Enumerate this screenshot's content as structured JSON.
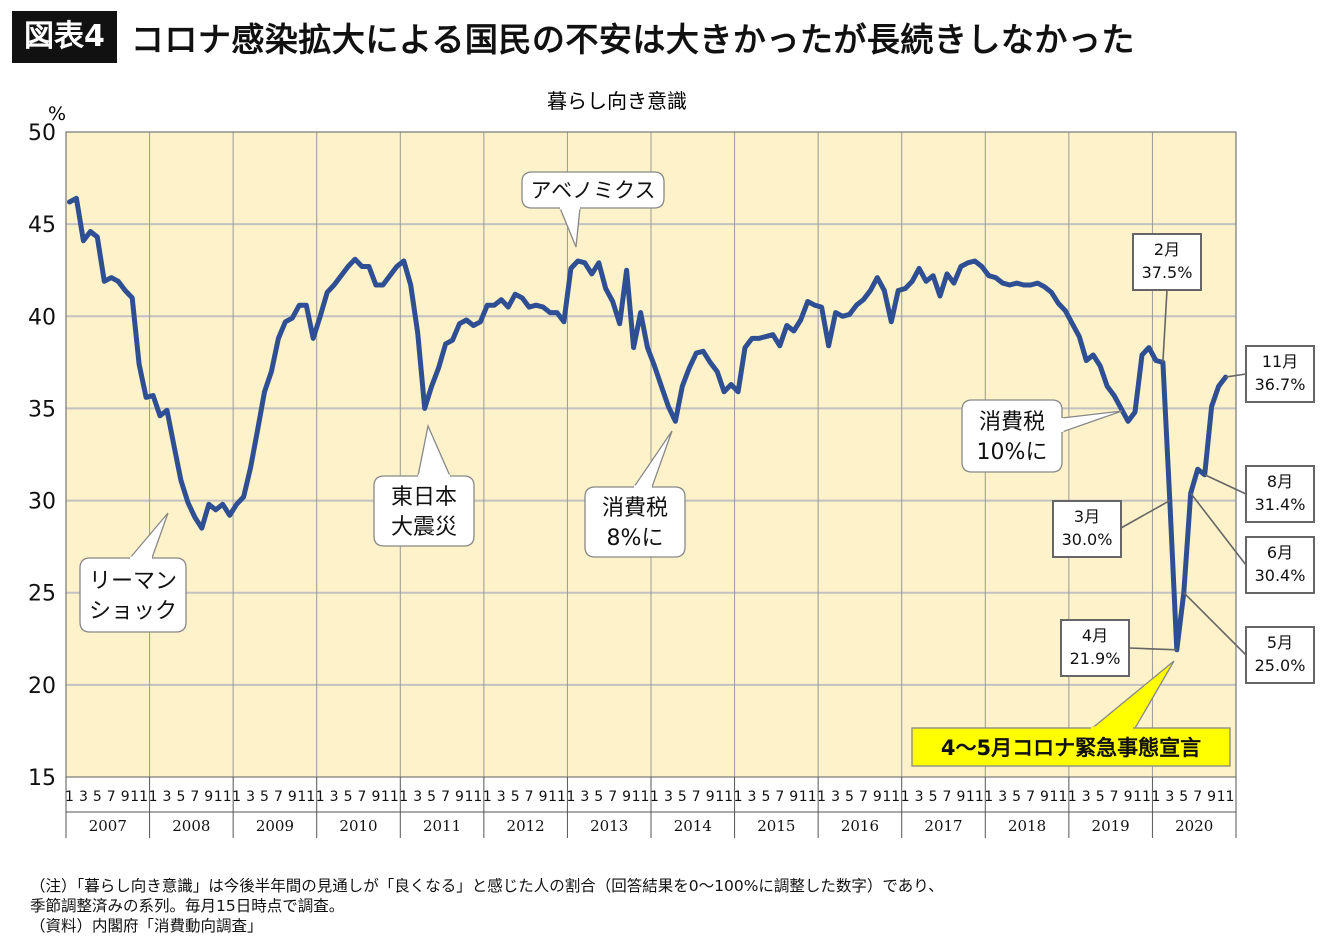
{
  "header": {
    "badge": "図表4",
    "headline": "コロナ感染拡大による国民の不安は大きかったが長続きしなかった"
  },
  "chart_data": {
    "type": "line",
    "title": "暮らし向き意識",
    "ylabel": "%",
    "ylim": [
      15,
      50
    ],
    "yticks": [
      15,
      20,
      25,
      30,
      35,
      40,
      45,
      50
    ],
    "month_labels": [
      "1",
      "3",
      "5",
      "7",
      "9",
      "11"
    ],
    "years": [
      "2007",
      "2008",
      "2009",
      "2010",
      "2011",
      "2012",
      "2013",
      "2014",
      "2015",
      "2016",
      "2017",
      "2018",
      "2019",
      "2020"
    ],
    "series": [
      {
        "values": [
          46.2,
          46.4,
          44.1,
          44.6,
          44.3,
          41.9,
          42.1,
          41.9,
          41.4,
          41.0,
          37.4,
          35.6,
          35.7,
          34.6,
          34.9,
          33.0,
          31.1,
          29.9,
          29.1,
          28.5,
          29.8,
          29.5,
          29.8,
          29.2,
          29.8,
          30.2,
          31.8,
          33.8,
          35.9,
          37.0,
          38.8,
          39.7,
          39.9,
          40.6,
          40.6,
          38.8,
          40.0,
          41.3,
          41.7,
          42.2,
          42.7,
          43.1,
          42.7,
          42.7,
          41.7,
          41.7,
          42.2,
          42.7,
          43.0,
          41.7,
          39.1,
          35.0,
          36.2,
          37.2,
          38.5,
          38.7,
          39.6,
          39.8,
          39.5,
          39.7,
          40.6,
          40.6,
          40.9,
          40.5,
          41.2,
          41.0,
          40.5,
          40.6,
          40.5,
          40.2,
          40.2,
          39.7,
          42.6,
          43.0,
          42.9,
          42.3,
          42.9,
          41.5,
          40.8,
          39.6,
          42.5,
          38.3,
          40.2,
          38.3,
          37.3,
          36.2,
          35.1,
          34.3,
          36.2,
          37.2,
          38.0,
          38.1,
          37.5,
          37.0,
          35.9,
          36.3,
          35.9,
          38.3,
          38.8,
          38.8,
          38.9,
          39.0,
          38.4,
          39.5,
          39.2,
          39.8,
          40.8,
          40.6,
          40.5,
          38.4,
          40.2,
          40.0,
          40.1,
          40.6,
          40.9,
          41.4,
          42.1,
          41.4,
          39.7,
          41.4,
          41.5,
          41.9,
          42.6,
          41.9,
          42.2,
          41.1,
          42.3,
          41.8,
          42.7,
          42.9,
          43.0,
          42.7,
          42.2,
          42.1,
          41.8,
          41.7,
          41.8,
          41.7,
          41.7,
          41.8,
          41.6,
          41.3,
          40.7,
          40.3,
          39.6,
          38.9,
          37.6,
          37.9,
          37.3,
          36.2,
          35.7,
          35.0,
          34.3,
          34.8,
          37.9,
          38.3,
          37.6,
          37.5,
          30.0,
          21.9,
          25.0,
          30.4,
          31.7,
          31.4,
          35.1,
          36.2,
          36.7
        ]
      }
    ],
    "annotations": [
      {
        "id": "lehman",
        "lines": [
          "リーマン",
          "ショック"
        ],
        "x_index": 22
      },
      {
        "id": "quake",
        "lines": [
          "東日本",
          "大震災"
        ],
        "x_index": 51
      },
      {
        "id": "abenomics",
        "lines": [
          "アベノミクス"
        ],
        "x_index": 72
      },
      {
        "id": "tax8",
        "lines": [
          "消費税",
          "8%に"
        ],
        "x_index": 87
      },
      {
        "id": "tax10",
        "lines": [
          "消費税",
          "10%に"
        ],
        "x_index": 153
      },
      {
        "id": "feb",
        "lines": [
          "2月",
          "37.5%"
        ],
        "x_index": 157
      },
      {
        "id": "mar",
        "lines": [
          "3月",
          "30.0%"
        ],
        "x_index": 158
      },
      {
        "id": "apr",
        "lines": [
          "4月",
          "21.9%"
        ],
        "x_index": 159
      },
      {
        "id": "may",
        "lines": [
          "5月",
          "25.0%"
        ],
        "x_index": 160
      },
      {
        "id": "jun",
        "lines": [
          "6月",
          "30.4%"
        ],
        "x_index": 161
      },
      {
        "id": "aug",
        "lines": [
          "8月",
          "31.4%"
        ],
        "x_index": 163
      },
      {
        "id": "nov",
        "lines": [
          "11月",
          "36.7%"
        ],
        "x_index": 166
      },
      {
        "id": "emergency",
        "lines": [
          "4〜5月コロナ緊急事態宣言"
        ],
        "x_index": 159
      }
    ],
    "colors": {
      "plot_bg": "#fdf2c9",
      "line": "#2e4f93",
      "highlight": "#ffff00"
    }
  },
  "notes": [
    "（注）「暮らし向き意識」は今後半年間の見通しが「良くなる」と感じた人の割合（回答結果を0〜100%に調整した数字）であり、",
    "季節調整済みの系列。毎月15日時点で調査。",
    "（資料）内閣府「消費動向調査」"
  ]
}
